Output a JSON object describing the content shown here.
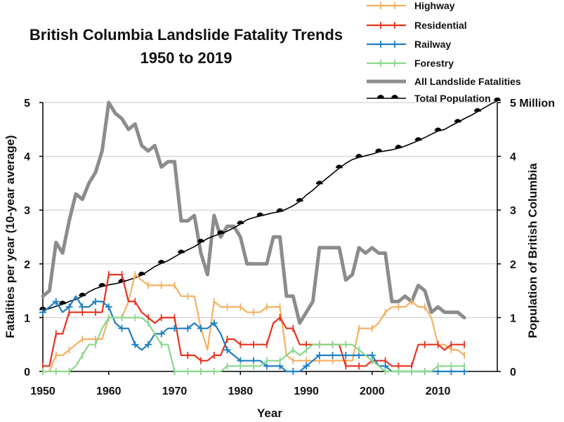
{
  "chart_data": {
    "type": "line",
    "title": [
      "British Columbia Landslide Fatality Trends",
      "1950 to 2019"
    ],
    "xlabel": "Year",
    "ylabel": "Fatalities per year (10-year average)",
    "ylabel_right": "Population of British Columbia",
    "xlim": [
      1950,
      2019
    ],
    "ylim": [
      0,
      5
    ],
    "ylim_right": [
      0,
      5
    ],
    "x_ticks": [
      "1950",
      "1960",
      "1970",
      "1980",
      "1990",
      "2000",
      "2010"
    ],
    "y_ticks": [
      "0",
      "1",
      "2",
      "3",
      "4",
      "5"
    ],
    "y_ticks_right": [
      "0",
      "1",
      "2",
      "3",
      "4",
      "5 Million"
    ],
    "legend_position": "top-right",
    "series": [
      {
        "name": "Highway",
        "color": "#f5b060",
        "marker": "tick",
        "x": [
          1950,
          1951,
          1952,
          1953,
          1954,
          1955,
          1956,
          1957,
          1958,
          1959,
          1960,
          1961,
          1962,
          1963,
          1964,
          1965,
          1966,
          1967,
          1968,
          1969,
          1970,
          1971,
          1972,
          1973,
          1974,
          1975,
          1976,
          1977,
          1978,
          1979,
          1980,
          1981,
          1982,
          1983,
          1984,
          1985,
          1986,
          1987,
          1988,
          1989,
          1990,
          1991,
          1992,
          1993,
          1994,
          1995,
          1996,
          1997,
          1998,
          1999,
          2000,
          2001,
          2002,
          2003,
          2004,
          2005,
          2006,
          2007,
          2008,
          2009,
          2010,
          2011,
          2012,
          2013,
          2014
        ],
        "y": [
          0,
          0,
          0.3,
          0.3,
          0.4,
          0.5,
          0.6,
          0.6,
          0.6,
          0.6,
          1.0,
          1.0,
          1.0,
          1.3,
          1.8,
          1.7,
          1.6,
          1.6,
          1.6,
          1.6,
          1.6,
          1.4,
          1.4,
          1.4,
          0.8,
          0.4,
          1.3,
          1.2,
          1.2,
          1.2,
          1.2,
          1.1,
          1.1,
          1.1,
          1.2,
          1.2,
          1.2,
          0.3,
          0.2,
          0.2,
          0.2,
          0.2,
          0.2,
          0.2,
          0.2,
          0.2,
          0.2,
          0.2,
          0.8,
          0.8,
          0.8,
          0.9,
          1.1,
          1.2,
          1.2,
          1.2,
          1.3,
          1.2,
          1.2,
          1.0,
          0.5,
          0.5,
          0.4,
          0.4,
          0.3
        ]
      },
      {
        "name": "Residential",
        "color": "#e8311e",
        "marker": "tick",
        "x": [
          1950,
          1951,
          1952,
          1953,
          1954,
          1955,
          1956,
          1957,
          1958,
          1959,
          1960,
          1961,
          1962,
          1963,
          1964,
          1965,
          1966,
          1967,
          1968,
          1969,
          1970,
          1971,
          1972,
          1973,
          1974,
          1975,
          1976,
          1977,
          1978,
          1979,
          1980,
          1981,
          1982,
          1983,
          1984,
          1985,
          1986,
          1987,
          1988,
          1989,
          1990,
          1991,
          1992,
          1993,
          1994,
          1995,
          1996,
          1997,
          1998,
          1999,
          2000,
          2001,
          2002,
          2003,
          2004,
          2005,
          2006,
          2007,
          2008,
          2009,
          2010,
          2011,
          2012,
          2013,
          2014
        ],
        "y": [
          0.1,
          0.1,
          0.7,
          0.7,
          1.1,
          1.1,
          1.1,
          1.1,
          1.1,
          1.1,
          1.8,
          1.8,
          1.8,
          1.3,
          1.3,
          1.1,
          1.0,
          0.9,
          1.0,
          1.0,
          1.0,
          0.3,
          0.3,
          0.3,
          0.2,
          0.2,
          0.3,
          0.3,
          0.6,
          0.6,
          0.5,
          0.5,
          0.5,
          0.5,
          0.5,
          0.9,
          1.0,
          0.8,
          0.8,
          0.5,
          0.5,
          0.5,
          0.5,
          0.5,
          0.5,
          0.5,
          0.1,
          0.1,
          0.1,
          0.1,
          0.2,
          0.2,
          0.2,
          0.1,
          0.1,
          0.1,
          0.1,
          0.5,
          0.5,
          0.5,
          0.5,
          0.4,
          0.5,
          0.5,
          0.5
        ]
      },
      {
        "name": "Railway",
        "color": "#1e7fc2",
        "marker": "plus",
        "x": [
          1950,
          1951,
          1952,
          1953,
          1954,
          1955,
          1956,
          1957,
          1958,
          1959,
          1960,
          1961,
          1962,
          1963,
          1964,
          1965,
          1966,
          1967,
          1968,
          1969,
          1970,
          1971,
          1972,
          1973,
          1974,
          1975,
          1976,
          1977,
          1978,
          1979,
          1980,
          1981,
          1982,
          1983,
          1984,
          1985,
          1986,
          1987,
          1988,
          1989,
          1990,
          1991,
          1992,
          1993,
          1994,
          1995,
          1996,
          1997,
          1998,
          1999,
          2000,
          2001,
          2002,
          2003,
          2004,
          2005,
          2006,
          2007,
          2008,
          2009,
          2010,
          2011,
          2012,
          2013,
          2014
        ],
        "y": [
          1.1,
          1.2,
          1.3,
          1.1,
          1.2,
          1.4,
          1.2,
          1.2,
          1.3,
          1.3,
          1.2,
          0.9,
          0.8,
          0.8,
          0.5,
          0.4,
          0.5,
          0.7,
          0.7,
          0.8,
          0.8,
          0.8,
          0.8,
          0.9,
          0.8,
          0.8,
          0.9,
          0.7,
          0.4,
          0.3,
          0.2,
          0.2,
          0.2,
          0.2,
          0.1,
          0.1,
          0.1,
          0,
          0,
          0,
          0.1,
          0.2,
          0.3,
          0.3,
          0.3,
          0.3,
          0.3,
          0.3,
          0.3,
          0.3,
          0.3,
          0.1,
          0.1,
          0,
          0,
          0,
          0,
          0,
          0,
          0,
          0,
          0,
          0,
          0,
          0
        ]
      },
      {
        "name": "Forestry",
        "color": "#8ad88c",
        "marker": "tick",
        "x": [
          1950,
          1951,
          1952,
          1953,
          1954,
          1955,
          1956,
          1957,
          1958,
          1959,
          1960,
          1961,
          1962,
          1963,
          1964,
          1965,
          1966,
          1967,
          1968,
          1969,
          1970,
          1971,
          1972,
          1973,
          1974,
          1975,
          1976,
          1977,
          1978,
          1979,
          1980,
          1981,
          1982,
          1983,
          1984,
          1985,
          1986,
          1987,
          1988,
          1989,
          1990,
          1991,
          1992,
          1993,
          1994,
          1995,
          1996,
          1997,
          1998,
          1999,
          2000,
          2001,
          2002,
          2003,
          2004,
          2005,
          2006,
          2007,
          2008,
          2009,
          2010,
          2011,
          2012,
          2013,
          2014
        ],
        "y": [
          0,
          0,
          0,
          0,
          0,
          0.1,
          0.3,
          0.5,
          0.5,
          0.8,
          1.0,
          1.0,
          1.0,
          1.0,
          1.0,
          1.0,
          0.9,
          0.7,
          0.5,
          0.5,
          0,
          0,
          0,
          0,
          0,
          0,
          0,
          0,
          0.1,
          0.1,
          0.1,
          0.1,
          0.1,
          0.1,
          0.2,
          0.2,
          0.2,
          0.3,
          0.4,
          0.3,
          0.4,
          0.5,
          0.5,
          0.5,
          0.5,
          0.5,
          0.5,
          0.5,
          0.4,
          0.3,
          0.2,
          0.1,
          0,
          0,
          0,
          0,
          0,
          0,
          0,
          0,
          0.1,
          0.1,
          0.1,
          0.1,
          0.1
        ]
      },
      {
        "name": "All Landslide Fatalities",
        "color": "#8c8c8c",
        "marker": "none",
        "x": [
          1950,
          1951,
          1952,
          1953,
          1954,
          1955,
          1956,
          1957,
          1958,
          1959,
          1960,
          1961,
          1962,
          1963,
          1964,
          1965,
          1966,
          1967,
          1968,
          1969,
          1970,
          1971,
          1972,
          1973,
          1974,
          1975,
          1976,
          1977,
          1978,
          1979,
          1980,
          1981,
          1982,
          1983,
          1984,
          1985,
          1986,
          1987,
          1988,
          1989,
          1990,
          1991,
          1992,
          1993,
          1994,
          1995,
          1996,
          1997,
          1998,
          1999,
          2000,
          2001,
          2002,
          2003,
          2004,
          2005,
          2006,
          2007,
          2008,
          2009,
          2010,
          2011,
          2012,
          2013,
          2014
        ],
        "y": [
          1.4,
          1.5,
          2.4,
          2.2,
          2.8,
          3.3,
          3.2,
          3.5,
          3.7,
          4.1,
          5.0,
          4.8,
          4.7,
          4.5,
          4.6,
          4.2,
          4.1,
          4.2,
          3.8,
          3.9,
          3.9,
          2.8,
          2.8,
          2.9,
          2.2,
          1.8,
          2.9,
          2.5,
          2.7,
          2.7,
          2.5,
          2.0,
          2.0,
          2.0,
          2.0,
          2.5,
          2.5,
          1.4,
          1.4,
          0.9,
          1.1,
          1.3,
          2.3,
          2.3,
          2.3,
          2.3,
          1.7,
          1.8,
          2.3,
          2.2,
          2.3,
          2.2,
          2.2,
          1.3,
          1.3,
          1.4,
          1.3,
          1.6,
          1.5,
          1.1,
          1.2,
          1.1,
          1.1,
          1.1,
          1.0
        ]
      },
      {
        "name": "Total Population",
        "color": "#000000",
        "marker": "half-circle",
        "axis": "right",
        "x": [
          1950,
          1951,
          1952,
          1953,
          1954,
          1955,
          1956,
          1957,
          1958,
          1959,
          1960,
          1961,
          1962,
          1963,
          1964,
          1965,
          1966,
          1967,
          1968,
          1969,
          1970,
          1971,
          1972,
          1973,
          1974,
          1975,
          1976,
          1977,
          1978,
          1979,
          1980,
          1981,
          1982,
          1983,
          1984,
          1985,
          1986,
          1987,
          1988,
          1989,
          1990,
          1991,
          1992,
          1993,
          1994,
          1995,
          1996,
          1997,
          1998,
          1999,
          2000,
          2001,
          2002,
          2003,
          2004,
          2005,
          2006,
          2007,
          2008,
          2009,
          2010,
          2011,
          2012,
          2013,
          2014,
          2015,
          2016,
          2017,
          2018,
          2019
        ],
        "y": [
          1.14,
          1.17,
          1.21,
          1.25,
          1.3,
          1.34,
          1.4,
          1.48,
          1.54,
          1.58,
          1.61,
          1.63,
          1.66,
          1.7,
          1.74,
          1.79,
          1.87,
          1.95,
          2.01,
          2.06,
          2.13,
          2.2,
          2.26,
          2.32,
          2.4,
          2.47,
          2.52,
          2.56,
          2.61,
          2.67,
          2.74,
          2.82,
          2.86,
          2.89,
          2.92,
          2.95,
          2.97,
          3.02,
          3.08,
          3.16,
          3.28,
          3.37,
          3.48,
          3.58,
          3.68,
          3.78,
          3.87,
          3.94,
          3.98,
          4.01,
          4.04,
          4.08,
          4.1,
          4.12,
          4.15,
          4.19,
          4.24,
          4.29,
          4.35,
          4.41,
          4.47,
          4.5,
          4.57,
          4.63,
          4.7,
          4.76,
          4.83,
          4.9,
          4.97,
          5.03
        ]
      }
    ]
  }
}
